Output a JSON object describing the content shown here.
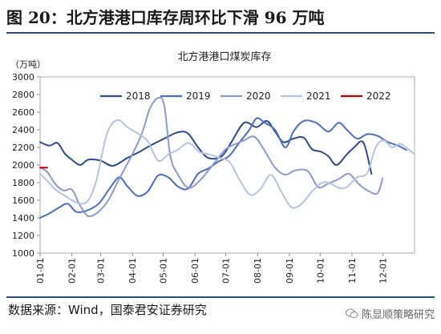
{
  "figure": {
    "title": "图 20：北方港港口库存周环比下滑 96 万吨",
    "source": "数据来源：Wind，国泰君安证券研究",
    "watermark": "陈显顺策略研究"
  },
  "chart_data": {
    "type": "line",
    "title": "北方港港口煤炭库存",
    "ylabel": "（万吨）",
    "ylim": [
      1000,
      3000
    ],
    "yticks": [
      1000,
      1200,
      1400,
      1600,
      1800,
      2000,
      2200,
      2400,
      2600,
      2800,
      3000
    ],
    "xlim": [
      1,
      366
    ],
    "x_tick_labels": [
      "01-01",
      "02-01",
      "03-01",
      "04-01",
      "05-01",
      "06-01",
      "07-01",
      "08-01",
      "09-01",
      "10-01",
      "11-01",
      "12-01"
    ],
    "x_tick_positions": [
      1,
      32,
      60,
      91,
      121,
      152,
      182,
      213,
      244,
      274,
      305,
      335
    ],
    "legend_position": "top",
    "series": [
      {
        "name": "2018",
        "color": "#2c4b8a",
        "points": [
          [
            1,
            2260
          ],
          [
            10,
            2220
          ],
          [
            18,
            2250
          ],
          [
            25,
            2130
          ],
          [
            32,
            2060
          ],
          [
            40,
            2000
          ],
          [
            48,
            2060
          ],
          [
            60,
            2050
          ],
          [
            72,
            1990
          ],
          [
            86,
            2080
          ],
          [
            98,
            2150
          ],
          [
            110,
            2230
          ],
          [
            122,
            2300
          ],
          [
            135,
            2370
          ],
          [
            145,
            2360
          ],
          [
            155,
            2200
          ],
          [
            165,
            2080
          ],
          [
            178,
            2100
          ],
          [
            188,
            2270
          ],
          [
            200,
            2480
          ],
          [
            212,
            2430
          ],
          [
            222,
            2500
          ],
          [
            230,
            2380
          ],
          [
            238,
            2260
          ],
          [
            248,
            2300
          ],
          [
            258,
            2310
          ],
          [
            266,
            2180
          ],
          [
            275,
            2150
          ],
          [
            282,
            2100
          ],
          [
            290,
            2000
          ],
          [
            300,
            2120
          ],
          [
            308,
            2210
          ],
          [
            314,
            2270
          ],
          [
            318,
            2200
          ],
          [
            324,
            1900
          ]
        ]
      },
      {
        "name": "2019",
        "color": "#4a70ba",
        "points": [
          [
            1,
            1400
          ],
          [
            10,
            1450
          ],
          [
            20,
            1520
          ],
          [
            28,
            1560
          ],
          [
            36,
            1470
          ],
          [
            46,
            1480
          ],
          [
            58,
            1560
          ],
          [
            68,
            1720
          ],
          [
            78,
            1860
          ],
          [
            86,
            1760
          ],
          [
            96,
            1650
          ],
          [
            106,
            1700
          ],
          [
            116,
            1880
          ],
          [
            126,
            1860
          ],
          [
            135,
            1760
          ],
          [
            145,
            1730
          ],
          [
            155,
            1900
          ],
          [
            165,
            1960
          ],
          [
            175,
            2040
          ],
          [
            185,
            2100
          ],
          [
            195,
            2250
          ],
          [
            205,
            2400
          ],
          [
            212,
            2530
          ],
          [
            220,
            2480
          ],
          [
            230,
            2400
          ],
          [
            240,
            2200
          ],
          [
            248,
            2380
          ],
          [
            258,
            2500
          ],
          [
            270,
            2480
          ],
          [
            282,
            2380
          ],
          [
            292,
            2480
          ],
          [
            300,
            2400
          ],
          [
            310,
            2300
          ],
          [
            320,
            2350
          ],
          [
            330,
            2330
          ],
          [
            340,
            2260
          ],
          [
            350,
            2220
          ],
          [
            358,
            2170
          ]
        ]
      },
      {
        "name": "2020",
        "color": "#8a9bcf",
        "points": [
          [
            1,
            1970
          ],
          [
            8,
            1920
          ],
          [
            16,
            1780
          ],
          [
            24,
            1710
          ],
          [
            32,
            1720
          ],
          [
            40,
            1540
          ],
          [
            48,
            1420
          ],
          [
            58,
            1470
          ],
          [
            68,
            1610
          ],
          [
            78,
            1840
          ],
          [
            90,
            2100
          ],
          [
            100,
            2350
          ],
          [
            108,
            2640
          ],
          [
            116,
            2760
          ],
          [
            122,
            2680
          ],
          [
            128,
            2100
          ],
          [
            136,
            1880
          ],
          [
            146,
            1740
          ],
          [
            158,
            1840
          ],
          [
            170,
            2010
          ],
          [
            182,
            2180
          ],
          [
            192,
            2240
          ],
          [
            200,
            2280
          ],
          [
            210,
            2320
          ],
          [
            220,
            2160
          ],
          [
            230,
            1970
          ],
          [
            240,
            1890
          ],
          [
            250,
            1940
          ],
          [
            262,
            1930
          ],
          [
            272,
            1750
          ],
          [
            282,
            1790
          ],
          [
            292,
            1840
          ],
          [
            302,
            1900
          ],
          [
            312,
            1780
          ],
          [
            322,
            1700
          ],
          [
            330,
            1680
          ],
          [
            335,
            1850
          ]
        ]
      },
      {
        "name": "2021",
        "color": "#b7c3e3",
        "points": [
          [
            1,
            1900
          ],
          [
            8,
            1820
          ],
          [
            16,
            1720
          ],
          [
            24,
            1660
          ],
          [
            32,
            1600
          ],
          [
            40,
            1560
          ],
          [
            48,
            1600
          ],
          [
            56,
            1830
          ],
          [
            66,
            2350
          ],
          [
            76,
            2510
          ],
          [
            86,
            2430
          ],
          [
            96,
            2360
          ],
          [
            106,
            2270
          ],
          [
            116,
            2050
          ],
          [
            126,
            2120
          ],
          [
            136,
            2180
          ],
          [
            146,
            2250
          ],
          [
            156,
            2150
          ],
          [
            166,
            2120
          ],
          [
            176,
            2080
          ],
          [
            186,
            2030
          ],
          [
            196,
            1820
          ],
          [
            206,
            1660
          ],
          [
            216,
            1730
          ],
          [
            226,
            1890
          ],
          [
            236,
            1700
          ],
          [
            246,
            1520
          ],
          [
            256,
            1560
          ],
          [
            266,
            1700
          ],
          [
            276,
            1800
          ],
          [
            284,
            1790
          ],
          [
            292,
            1740
          ],
          [
            300,
            1750
          ],
          [
            310,
            1860
          ],
          [
            320,
            1910
          ],
          [
            328,
            2200
          ],
          [
            336,
            2280
          ],
          [
            344,
            2200
          ],
          [
            352,
            2240
          ],
          [
            360,
            2180
          ],
          [
            366,
            2120
          ]
        ]
      },
      {
        "name": "2022",
        "color": "#c00000",
        "points": [
          [
            1,
            1970
          ],
          [
            8,
            1970
          ]
        ]
      }
    ]
  }
}
